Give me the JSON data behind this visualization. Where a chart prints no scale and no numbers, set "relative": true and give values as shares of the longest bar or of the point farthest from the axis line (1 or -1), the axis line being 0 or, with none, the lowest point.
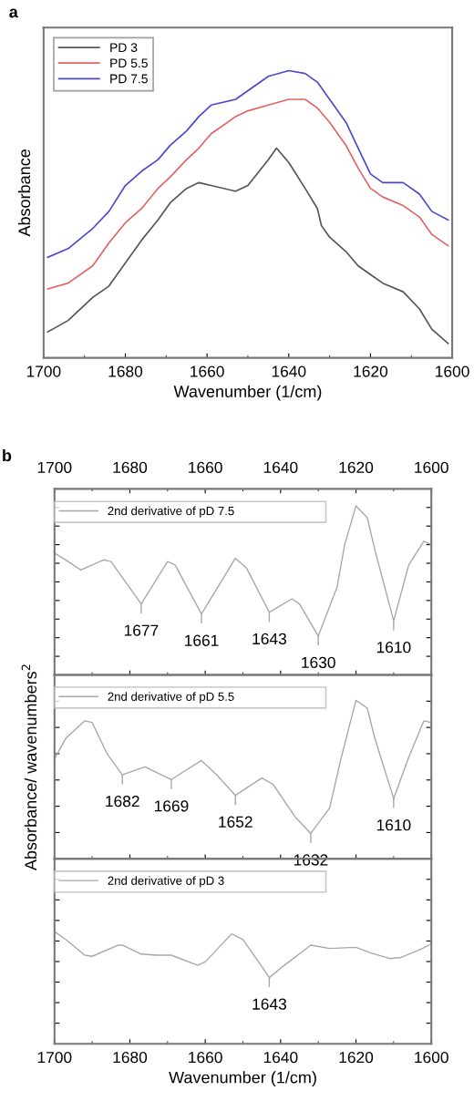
{
  "chart_data": [
    {
      "type": "line",
      "title": "a",
      "xlabel": "Wavenumber (1/cm)",
      "ylabel": "Absorbance",
      "relative": true,
      "xlim": [
        1700,
        1600
      ],
      "xticks": [
        1700,
        1680,
        1660,
        1640,
        1620,
        1600
      ],
      "legend": "top left",
      "x": [
        1699,
        1694,
        1688,
        1684,
        1680,
        1676,
        1672,
        1669,
        1665,
        1662,
        1659,
        1653,
        1650,
        1645,
        1640,
        1636,
        1633,
        1630,
        1626,
        1623,
        1620,
        1617,
        1612,
        1608,
        1605,
        1601
      ],
      "series": [
        {
          "name": "PD 3",
          "color": "#555555",
          "x": [
            1699,
            1694,
            1688,
            1684,
            1680,
            1676,
            1672,
            1669,
            1665,
            1662,
            1659,
            1653,
            1650,
            1645,
            1643,
            1640,
            1636,
            1633,
            1632,
            1630,
            1626,
            1623,
            1620,
            1617,
            1612,
            1608,
            1605,
            1601
          ],
          "values": [
            0.09,
            0.13,
            0.21,
            0.25,
            0.33,
            0.41,
            0.48,
            0.54,
            0.59,
            0.61,
            0.6,
            0.58,
            0.6,
            0.69,
            0.73,
            0.68,
            0.59,
            0.52,
            0.46,
            0.42,
            0.37,
            0.32,
            0.29,
            0.26,
            0.23,
            0.17,
            0.1,
            0.05
          ]
        },
        {
          "name": "PD 5.5",
          "color": "#e06464",
          "values": [
            0.24,
            0.26,
            0.32,
            0.4,
            0.47,
            0.52,
            0.59,
            0.63,
            0.69,
            0.73,
            0.78,
            0.84,
            0.86,
            0.88,
            0.9,
            0.9,
            0.87,
            0.82,
            0.74,
            0.66,
            0.59,
            0.56,
            0.53,
            0.49,
            0.43,
            0.39
          ]
        },
        {
          "name": "PD 7.5",
          "color": "#4a4ad0",
          "values": [
            0.35,
            0.38,
            0.45,
            0.51,
            0.6,
            0.65,
            0.69,
            0.74,
            0.79,
            0.84,
            0.88,
            0.9,
            0.93,
            0.98,
            1.0,
            0.99,
            0.96,
            0.9,
            0.82,
            0.73,
            0.64,
            0.61,
            0.61,
            0.57,
            0.51,
            0.48
          ]
        }
      ]
    },
    {
      "type": "line",
      "title": "b",
      "relative": true,
      "xlim": [
        1700,
        1600
      ],
      "legend": "top left",
      "xticks": [
        1700,
        1680,
        1660,
        1640,
        1620,
        1600
      ],
      "tick_labels": "x",
      "x": [
        1700,
        1697,
        1693,
        1687,
        1685,
        1677,
        1670,
        1668,
        1661,
        1652,
        1649,
        1643,
        1637,
        1635,
        1630,
        1625,
        1623,
        1620,
        1617,
        1615,
        1610,
        1606,
        1602,
        1600
      ],
      "series": [
        {
          "name": "2nd derivative of pD 7.5",
          "color": "#a8a8a8",
          "values": [
            0.72,
            0.68,
            0.62,
            0.68,
            0.67,
            0.42,
            0.67,
            0.65,
            0.36,
            0.69,
            0.63,
            0.37,
            0.45,
            0.42,
            0.23,
            0.52,
            0.77,
            1.0,
            0.93,
            0.74,
            0.32,
            0.65,
            0.79,
            0.77
          ]
        }
      ],
      "annotations": [
        {
          "text": "1677",
          "x": 1677,
          "y": 0.42
        },
        {
          "text": "1661",
          "x": 1661,
          "y": 0.36
        },
        {
          "text": "1643",
          "x": 1643,
          "y": 0.37
        },
        {
          "text": "1630",
          "x": 1630,
          "y": 0.23
        },
        {
          "text": "1610",
          "x": 1610,
          "y": 0.32
        }
      ]
    },
    {
      "type": "line",
      "ylabel": "Absorbance/ wavenumbers$^{2}$",
      "relative": true,
      "xlim": [
        1700,
        1600
      ],
      "legend": "top left",
      "xticks": [
        1700,
        1680,
        1660,
        1640,
        1620,
        1600
      ],
      "tick_labels": false,
      "x": [
        1700,
        1697,
        1692,
        1690,
        1686,
        1682,
        1676,
        1669,
        1661,
        1657,
        1652,
        1645,
        1642,
        1636,
        1632,
        1627,
        1624,
        1620,
        1617,
        1615,
        1610,
        1606,
        1602,
        1600
      ],
      "series": [
        {
          "name": "2nd derivative of pD 5.5",
          "color": "#a8a8a8",
          "values": [
            0.63,
            0.76,
            0.87,
            0.86,
            0.66,
            0.53,
            0.58,
            0.5,
            0.62,
            0.53,
            0.4,
            0.51,
            0.47,
            0.26,
            0.16,
            0.32,
            0.63,
            1.0,
            0.95,
            0.76,
            0.38,
            0.64,
            0.87,
            0.86
          ]
        }
      ],
      "annotations": [
        {
          "text": "1682",
          "x": 1682,
          "y": 0.53
        },
        {
          "text": "1669",
          "x": 1669,
          "y": 0.5
        },
        {
          "text": "1652",
          "x": 1652,
          "y": 0.4
        },
        {
          "text": "1632",
          "x": 1632,
          "y": 0.16
        },
        {
          "text": "1610",
          "x": 1610,
          "y": 0.38
        }
      ]
    },
    {
      "type": "line",
      "xlabel": "Wavenumber (1/cm)",
      "relative": true,
      "xlim": [
        1700,
        1600
      ],
      "xticks": [
        1700,
        1680,
        1660,
        1640,
        1620,
        1600
      ],
      "legend": "top left",
      "x": [
        1700,
        1697,
        1692,
        1690,
        1683,
        1682,
        1677,
        1673,
        1669,
        1662,
        1660,
        1653,
        1650,
        1645,
        1643,
        1639,
        1632,
        1627,
        1620,
        1616,
        1611,
        1608,
        1603,
        1600
      ],
      "series": [
        {
          "name": "2nd derivative of pD 3",
          "color": "#a8a8a8",
          "values": [
            1.0,
            0.93,
            0.79,
            0.78,
            0.88,
            0.88,
            0.8,
            0.79,
            0.79,
            0.7,
            0.73,
            0.98,
            0.93,
            0.69,
            0.59,
            0.7,
            0.88,
            0.85,
            0.86,
            0.81,
            0.76,
            0.77,
            0.84,
            0.89
          ]
        }
      ],
      "annotations": [
        {
          "text": "1643",
          "x": 1643,
          "y": 0.59
        }
      ]
    }
  ]
}
